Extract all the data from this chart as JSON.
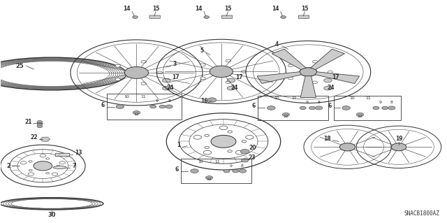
{
  "bg_color": "#ffffff",
  "diagram_code": "SNACB1800AZ",
  "fig_width": 6.4,
  "fig_height": 3.19,
  "dpi": 100
}
